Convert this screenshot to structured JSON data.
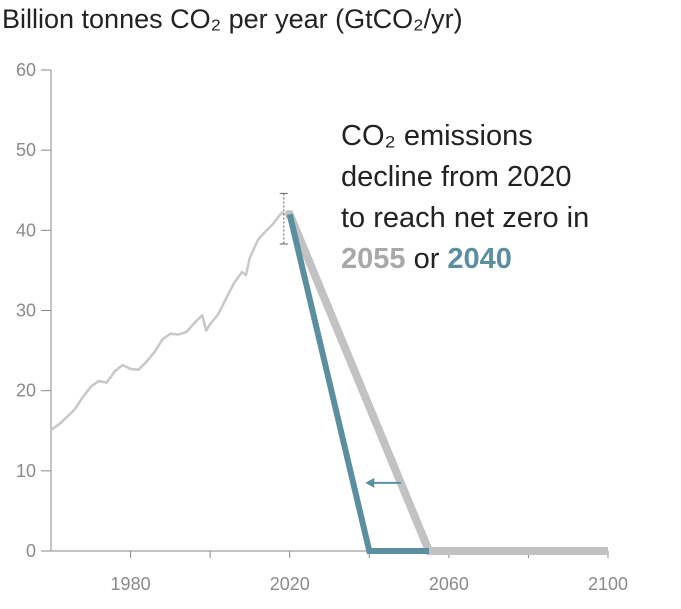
{
  "chart_data": {
    "type": "line",
    "title": "Billion tonnes CO₂ per year (GtCO₂/yr)",
    "xlabel": "",
    "ylabel": "",
    "xlim": [
      1960,
      2100
    ],
    "ylim": [
      0,
      60
    ],
    "x_ticks": [
      1980,
      2020,
      2060,
      2100
    ],
    "y_ticks": [
      0,
      10,
      20,
      30,
      40,
      50,
      60
    ],
    "grid": false,
    "colors": {
      "historical": "#c8c8c8",
      "pathway_2055": "#c2c2c4",
      "pathway_2040": "#5b8fa0",
      "annotation_2055": "#a8a8a8",
      "annotation_2040": "#5b8fa0",
      "axis": "#8a8a8a"
    },
    "series": [
      {
        "key": "historical",
        "x": [
          1960,
          1962,
          1964,
          1966,
          1968,
          1970,
          1972,
          1974,
          1976,
          1978,
          1980,
          1982,
          1984,
          1986,
          1988,
          1990,
          1992,
          1994,
          1996,
          1998,
          1999,
          2000,
          2002,
          2004,
          2006,
          2008,
          2009,
          2010,
          2012,
          2014,
          2016,
          2017,
          2018,
          2019
        ],
        "values": [
          15.1,
          15.8,
          16.7,
          17.7,
          19.2,
          20.5,
          21.2,
          21.0,
          22.4,
          23.2,
          22.7,
          22.6,
          23.6,
          24.8,
          26.4,
          27.1,
          27.0,
          27.3,
          28.4,
          29.4,
          27.5,
          28.3,
          29.5,
          31.5,
          33.4,
          34.8,
          34.4,
          36.6,
          38.8,
          39.9,
          40.9,
          41.6,
          42.2,
          42.0
        ]
      },
      {
        "key": "pathway_2055",
        "x": [
          2019,
          2020,
          2055,
          2100
        ],
        "values": [
          42.0,
          42.0,
          0,
          0
        ]
      },
      {
        "key": "pathway_2040",
        "x": [
          2020,
          2040,
          2055
        ],
        "values": [
          42.0,
          0,
          0
        ]
      }
    ],
    "uncertainty_2019": {
      "x": 2019,
      "low": 38.3,
      "high": 44.6
    },
    "arrow": {
      "from_x": 2048,
      "to_x": 2039,
      "y": 8.5
    },
    "annotation": {
      "line1": "CO₂ emissions",
      "line2": "decline from 2020",
      "line3": "to reach net zero in",
      "year_a": "2055",
      "connector": " or ",
      "year_b": "2040"
    }
  }
}
